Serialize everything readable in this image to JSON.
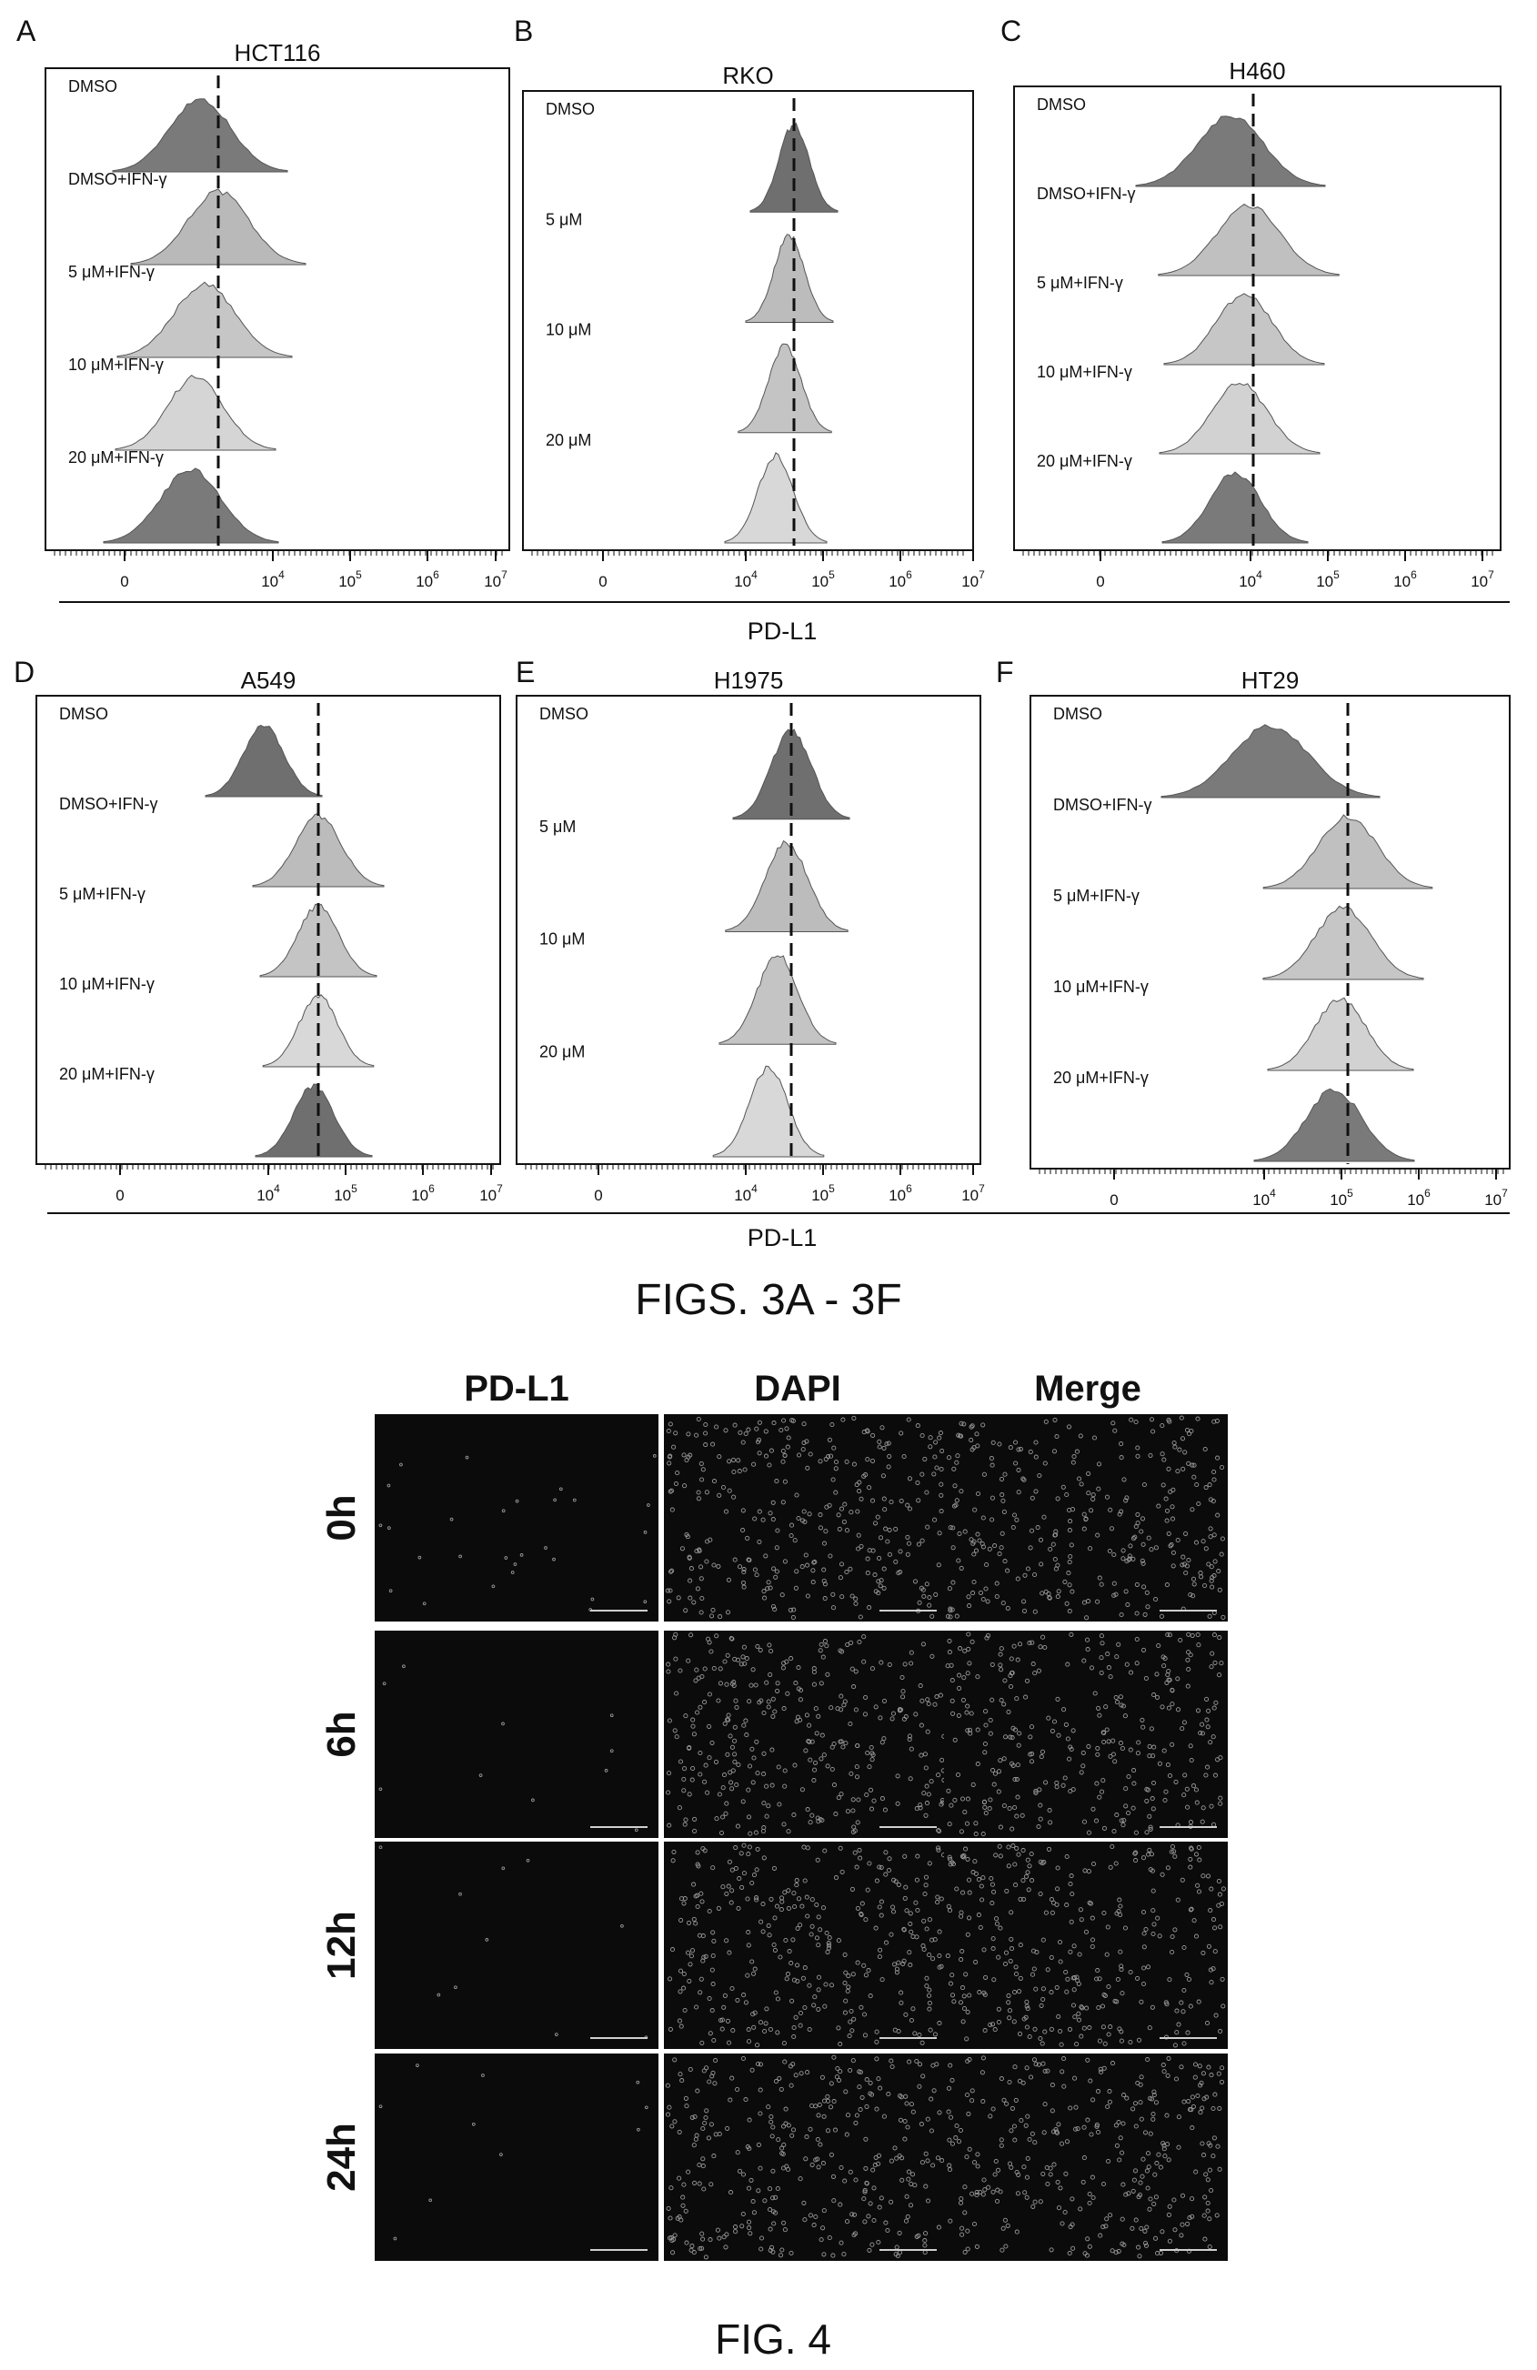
{
  "figure3": {
    "caption": "FIGS. 3A - 3F",
    "shared_xlabel": "PD-L1",
    "panels": [
      {
        "letter": "A",
        "title": "HCT116",
        "rows": [
          "DMSO",
          "DMSO+IFN-γ",
          "5 μM+IFN-γ",
          "10 μM+IFN-γ",
          "20 μM+IFN-γ"
        ],
        "ticks": [
          "0",
          "10^4",
          "10^5",
          "10^6",
          "10^7"
        ],
        "dashed_at": "10^4"
      },
      {
        "letter": "B",
        "title": "RKO",
        "rows": [
          "DMSO",
          "5 μM",
          "10 μM",
          "20 μM"
        ],
        "ticks": [
          "0",
          "10^4",
          "10^5",
          "10^6",
          "10^7"
        ],
        "dashed_at": "10^4.6"
      },
      {
        "letter": "C",
        "title": "H460",
        "rows": [
          "DMSO",
          "DMSO+IFN-γ",
          "5 μM+IFN-γ",
          "10 μM+IFN-γ",
          "20 μM+IFN-γ"
        ],
        "ticks": [
          "0",
          "10^4",
          "10^5",
          "10^6",
          "10^7"
        ],
        "dashed_at": "10^4"
      },
      {
        "letter": "D",
        "title": "A549",
        "rows": [
          "DMSO",
          "DMSO+IFN-γ",
          "5 μM+IFN-γ",
          "10 μM+IFN-γ",
          "20 μM+IFN-γ"
        ],
        "ticks": [
          "0",
          "10^4",
          "10^5",
          "10^6",
          "10^7"
        ],
        "dashed_at": "10^4.6"
      },
      {
        "letter": "E",
        "title": "H1975",
        "rows": [
          "DMSO",
          "5 μM",
          "10 μM",
          "20 μM"
        ],
        "ticks": [
          "0",
          "10^4",
          "10^5",
          "10^6",
          "10^7"
        ],
        "dashed_at": "10^4.6"
      },
      {
        "letter": "F",
        "title": "HT29",
        "rows": [
          "DMSO",
          "DMSO+IFN-γ",
          "5 μM+IFN-γ",
          "10 μM+IFN-γ",
          "20 μM+IFN-γ"
        ],
        "ticks": [
          "0",
          "10^4",
          "10^5",
          "10^6",
          "10^7"
        ],
        "dashed_at": "10^5"
      }
    ]
  },
  "figure4": {
    "caption": "FIG. 4",
    "columns": [
      "PD-L1",
      "DAPI",
      "Merge"
    ],
    "rows": [
      "0h",
      "6h",
      "12h",
      "24h"
    ],
    "colors": {
      "pdl1_header": "#444444",
      "dapi_header": "#8a8a8a",
      "merge_header": "#111111",
      "panel_bg": "#0b0b0b",
      "cell_dot": "#9a9a9a"
    }
  }
}
